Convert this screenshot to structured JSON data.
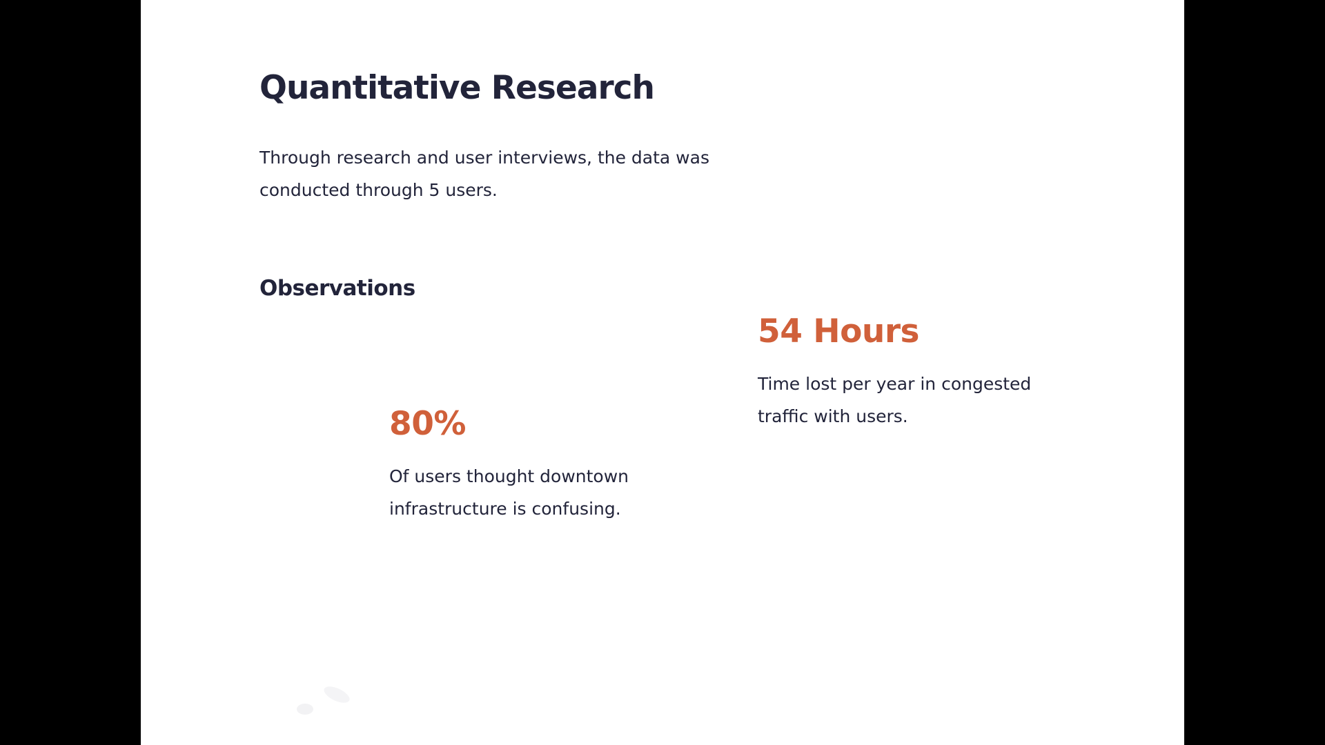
{
  "page": {
    "title": "Quantitative Research",
    "intro": "Through research and user interviews, the data was conducted through 5 users.",
    "observations_heading": "Observations"
  },
  "stats": [
    {
      "value": "80%",
      "description": "Of users thought downtown infrastructure is confusing."
    },
    {
      "value": "54 Hours",
      "description": "Time lost per year in congested traffic with users."
    }
  ],
  "colors": {
    "letterbox": "#000000",
    "background": "#ffffff",
    "text": "#22243a",
    "accent": "#d0603a"
  }
}
